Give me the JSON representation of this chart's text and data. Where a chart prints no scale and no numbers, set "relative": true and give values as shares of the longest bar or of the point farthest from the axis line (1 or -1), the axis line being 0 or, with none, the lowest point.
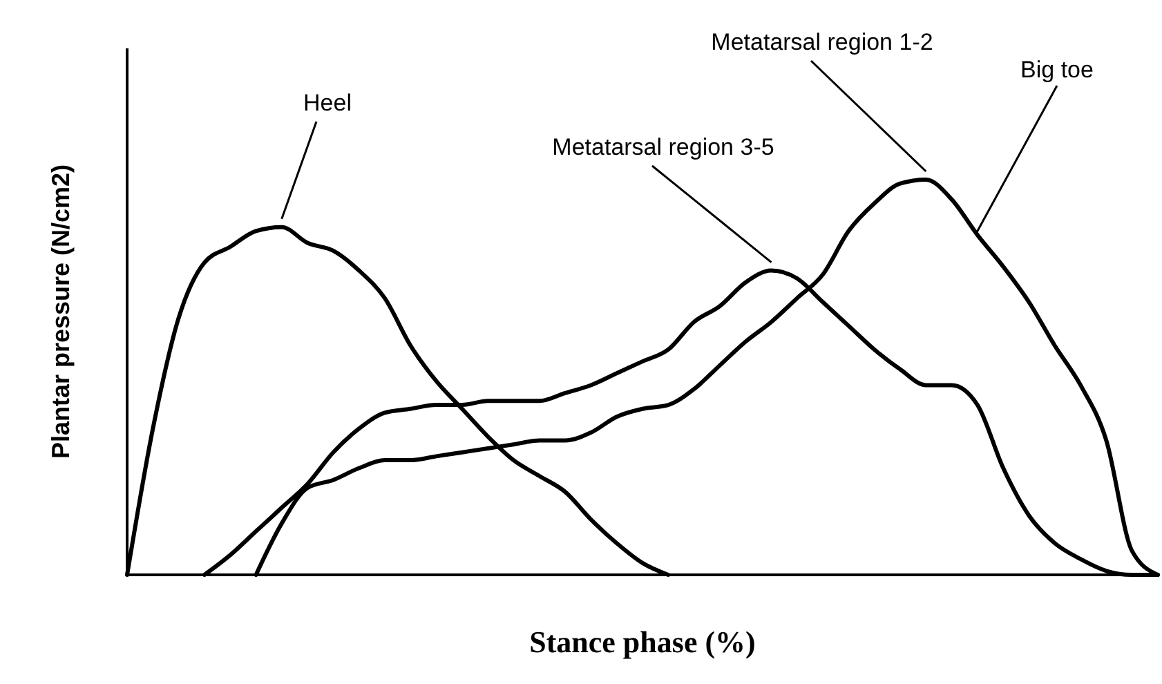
{
  "chart_data": {
    "type": "line",
    "relative": true,
    "xlabel": "Stance phase (%)",
    "ylabel": "Plantar pressure (N/cm2)",
    "categories": [
      null,
      null,
      null,
      null,
      null,
      null,
      null,
      null,
      null,
      null,
      null,
      null,
      null,
      null,
      null,
      null,
      null,
      null,
      null,
      null,
      null,
      null,
      null,
      null,
      null,
      null,
      null,
      null,
      null,
      null,
      null,
      null,
      null,
      null,
      null,
      null,
      null,
      null,
      null,
      null,
      null
    ],
    "series": [
      {
        "name": "Heel",
        "color": "#000000",
        "values": [
          0,
          0.37,
          0.65,
          0.79,
          0.83,
          0.87,
          0.88,
          0.84,
          0.82,
          0.77,
          0.7,
          0.58,
          0.49,
          0.42,
          0.35,
          0.29,
          0.25,
          0.21,
          0.14,
          0.08,
          0.03,
          0,
          null,
          null,
          null,
          null,
          null,
          null,
          null,
          null,
          null,
          null,
          null,
          null,
          null,
          null,
          null,
          null,
          null,
          null,
          null
        ]
      },
      {
        "name": "Metatarsal region 3-5",
        "color": "#000000",
        "values": [
          null,
          null,
          null,
          0,
          0.05,
          0.11,
          0.17,
          0.23,
          0.31,
          0.37,
          0.41,
          0.42,
          0.43,
          0.43,
          0.44,
          0.44,
          0.44,
          0.46,
          0.48,
          0.51,
          0.54,
          0.57,
          0.64,
          0.68,
          0.74,
          0.77,
          0.75,
          0.69,
          0.63,
          0.57,
          0.52,
          0.48,
          0.48,
          0.43,
          0.27,
          0.15,
          0.08,
          0.04,
          0.01,
          0,
          0
        ]
      },
      {
        "name": "Metatarsal region 1-2",
        "color": "#000000",
        "values": [
          null,
          null,
          null,
          null,
          null,
          0,
          0.13,
          0.22,
          0.24,
          0.27,
          0.29,
          0.29,
          0.3,
          0.31,
          0.32,
          0.33,
          0.34,
          0.34,
          0.36,
          0.4,
          0.42,
          0.43,
          0.47,
          0.53,
          0.59,
          0.64,
          0.7,
          0.76,
          0.87,
          0.94,
          0.99,
          1,
          0.95,
          0.86,
          0.78,
          0.69,
          0.58,
          0.48,
          0.34,
          0.06,
          0
        ]
      }
    ],
    "annotations": [
      "Big toe"
    ]
  }
}
